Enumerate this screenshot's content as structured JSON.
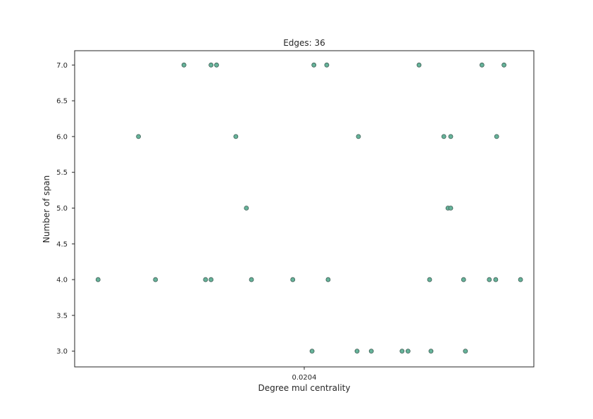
{
  "chart_data": {
    "type": "scatter",
    "title": "Edges: 36",
    "xlabel": "Degree mul centrality",
    "ylabel": "Number of span",
    "x_tick_labels": [
      "0.0204"
    ],
    "y_tick_labels": [
      "3.0",
      "3.5",
      "4.0",
      "4.5",
      "5.0",
      "5.5",
      "6.0",
      "6.5",
      "7.0"
    ],
    "y_ticks": [
      3.0,
      3.5,
      4.0,
      4.5,
      5.0,
      5.5,
      6.0,
      6.5,
      7.0
    ],
    "ylim": [
      2.78,
      7.2
    ],
    "grid": false,
    "marker_color": "#66b39a",
    "marker_edge_color": "#3f5f55",
    "points_note": "x values are positions along an axis with a single labelled tick; y values are the span counts",
    "x_domain": [
      0.0,
      1.0
    ],
    "x_tick_positions": [
      0.5
    ],
    "points": [
      {
        "x": 0.051,
        "y": 4
      },
      {
        "x": 0.139,
        "y": 6
      },
      {
        "x": 0.176,
        "y": 4
      },
      {
        "x": 0.238,
        "y": 7
      },
      {
        "x": 0.285,
        "y": 4
      },
      {
        "x": 0.297,
        "y": 4
      },
      {
        "x": 0.297,
        "y": 7
      },
      {
        "x": 0.309,
        "y": 7
      },
      {
        "x": 0.351,
        "y": 6
      },
      {
        "x": 0.374,
        "y": 5
      },
      {
        "x": 0.385,
        "y": 4
      },
      {
        "x": 0.475,
        "y": 4
      },
      {
        "x": 0.517,
        "y": 3
      },
      {
        "x": 0.521,
        "y": 7
      },
      {
        "x": 0.549,
        "y": 7
      },
      {
        "x": 0.552,
        "y": 4
      },
      {
        "x": 0.615,
        "y": 3
      },
      {
        "x": 0.618,
        "y": 6
      },
      {
        "x": 0.646,
        "y": 3
      },
      {
        "x": 0.713,
        "y": 3
      },
      {
        "x": 0.726,
        "y": 3
      },
      {
        "x": 0.75,
        "y": 7
      },
      {
        "x": 0.773,
        "y": 4
      },
      {
        "x": 0.776,
        "y": 3
      },
      {
        "x": 0.804,
        "y": 6
      },
      {
        "x": 0.813,
        "y": 5
      },
      {
        "x": 0.819,
        "y": 5
      },
      {
        "x": 0.819,
        "y": 6
      },
      {
        "x": 0.847,
        "y": 4
      },
      {
        "x": 0.851,
        "y": 3
      },
      {
        "x": 0.887,
        "y": 7
      },
      {
        "x": 0.903,
        "y": 4
      },
      {
        "x": 0.917,
        "y": 4
      },
      {
        "x": 0.919,
        "y": 6
      },
      {
        "x": 0.935,
        "y": 7
      },
      {
        "x": 0.971,
        "y": 4
      }
    ]
  }
}
